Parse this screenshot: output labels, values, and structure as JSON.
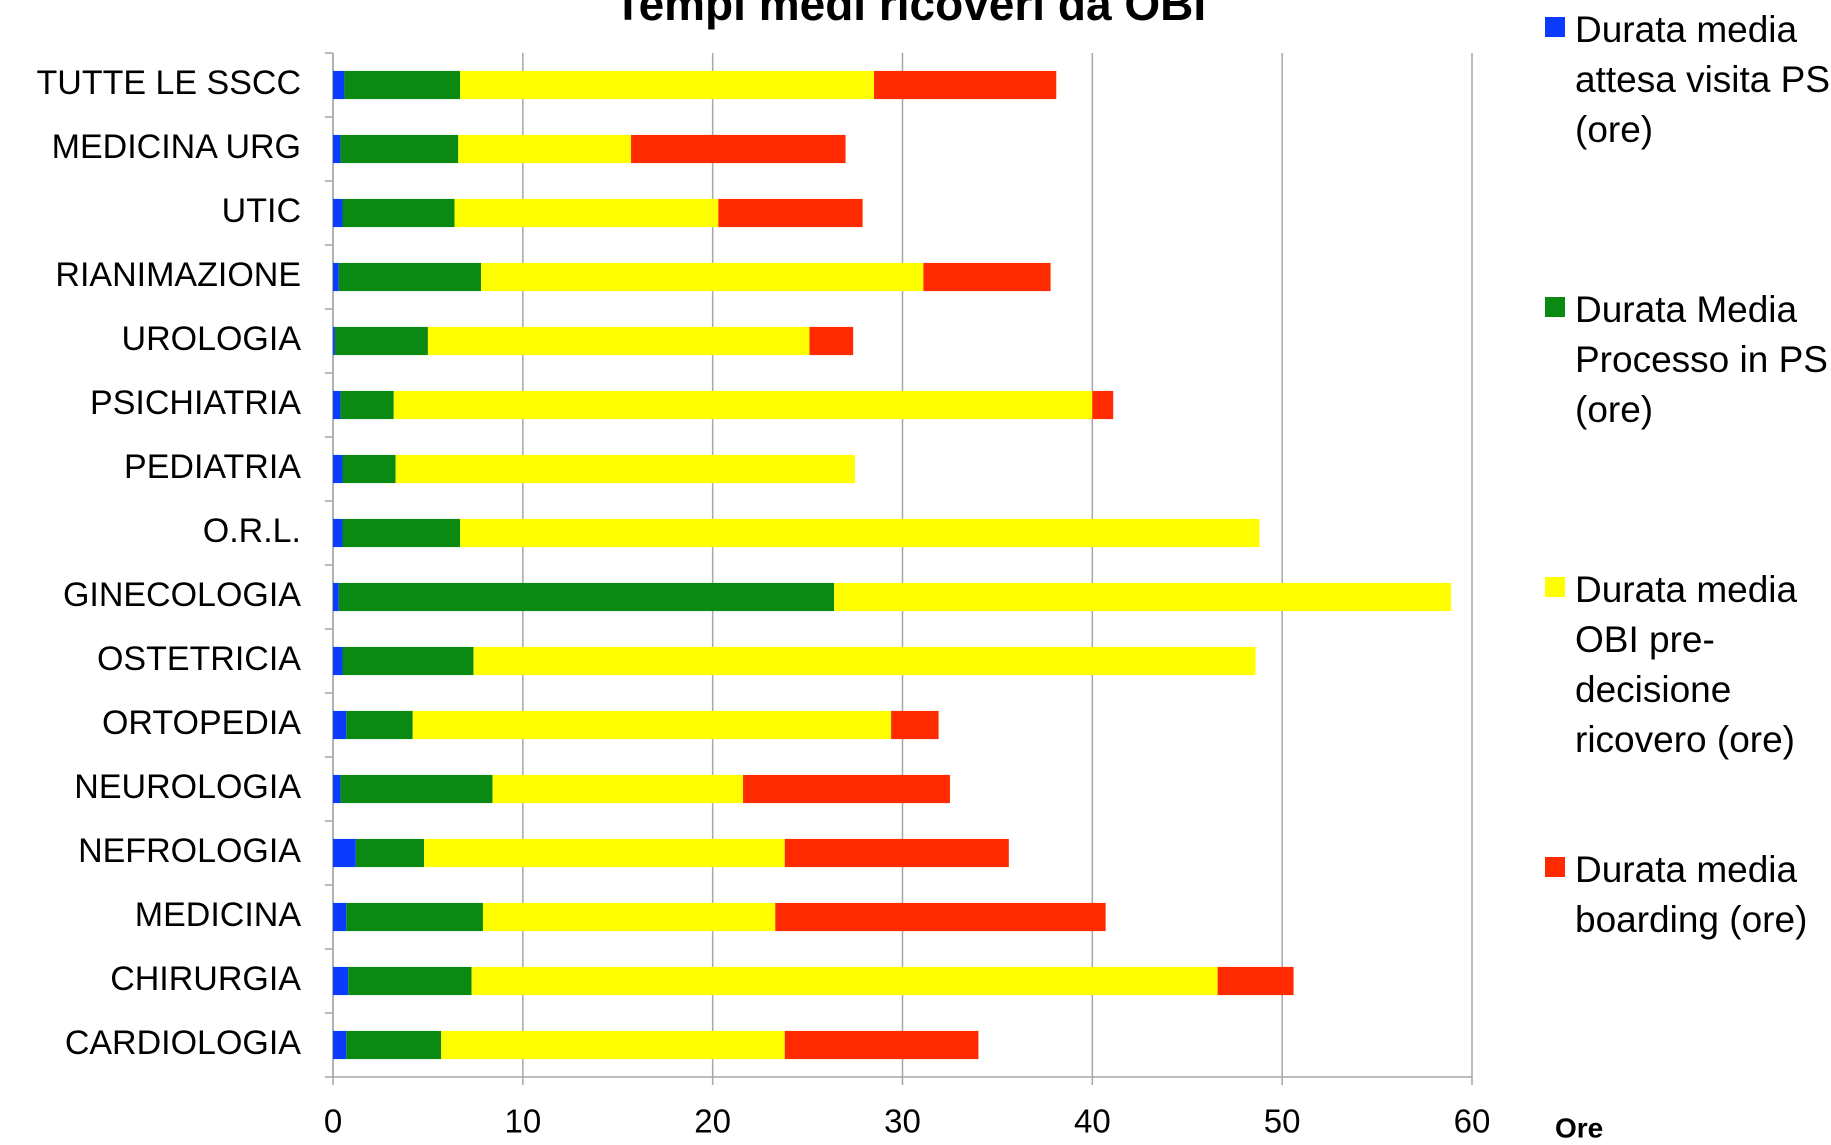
{
  "chart_data": {
    "type": "stacked_barh",
    "title": "Tempi medi ricoveri da OBI",
    "x_label": "Ore",
    "categories": [
      "TUTTE LE SSCC",
      "MEDICINA URG",
      "UTIC",
      "RIANIMAZIONE",
      "UROLOGIA",
      "PSICHIATRIA",
      "PEDIATRIA",
      "O.R.L.",
      "GINECOLOGIA",
      "OSTETRICIA",
      "ORTOPEDIA",
      "NEUROLOGIA",
      "NEFROLOGIA",
      "MEDICINA",
      "CHIRURGIA",
      "CARDIOLOGIA"
    ],
    "series": [
      {
        "name": "Durata media attesa visita PS (ore)",
        "color": "#0a3bff",
        "values": [
          0.6,
          0.4,
          0.5,
          0.3,
          0.1,
          0.4,
          0.5,
          0.5,
          0.3,
          0.5,
          0.7,
          0.4,
          1.2,
          0.7,
          0.8,
          0.7
        ]
      },
      {
        "name": "Durata Media Processo in PS (ore)",
        "color": "#0a8a12",
        "values": [
          6.1,
          6.2,
          5.9,
          7.5,
          4.9,
          2.8,
          2.8,
          6.2,
          26.1,
          6.9,
          3.5,
          8.0,
          3.6,
          7.2,
          6.5,
          5.0
        ]
      },
      {
        "name": "Durata media OBI pre-decisione ricovero (ore)",
        "color": "#ffff00",
        "values": [
          21.8,
          9.1,
          13.9,
          23.3,
          20.1,
          36.8,
          24.2,
          42.1,
          32.5,
          41.2,
          25.2,
          13.2,
          19.0,
          15.4,
          39.3,
          18.1
        ]
      },
      {
        "name": "Durata media boarding (ore)",
        "color": "#ff2a00",
        "values": [
          9.6,
          11.3,
          7.6,
          6.7,
          2.3,
          1.1,
          0,
          0,
          0,
          0,
          2.5,
          10.9,
          11.8,
          17.4,
          4.0,
          10.2
        ]
      }
    ],
    "xlim": [
      0,
      60
    ],
    "xticks": [
      0,
      10,
      20,
      30,
      40,
      50,
      60
    ],
    "grid": true
  }
}
